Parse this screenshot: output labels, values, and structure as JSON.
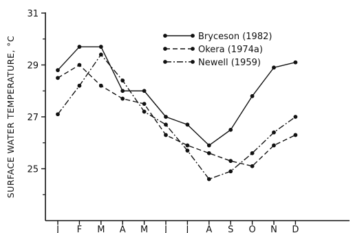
{
  "chart_data": {
    "type": "line",
    "title": "",
    "xlabel": "",
    "ylabel": "SURFACE WATER TEMPERATURE, °C",
    "categories": [
      "J",
      "F",
      "M",
      "A",
      "M",
      "J",
      "J",
      "A",
      "S",
      "O",
      "N",
      "D"
    ],
    "ylim": [
      23,
      31
    ],
    "yticks": [
      25,
      27,
      29,
      31
    ],
    "grid": false,
    "legend_position": "top-center",
    "series": [
      {
        "name": "Bryceson (1982)",
        "line_style": "solid",
        "color": "#111111",
        "values": [
          28.8,
          29.7,
          29.7,
          28.0,
          28.0,
          27.0,
          26.7,
          25.9,
          26.5,
          27.8,
          28.9,
          29.1
        ]
      },
      {
        "name": "Okera (1974a)",
        "line_style": "dashed",
        "color": "#111111",
        "values": [
          28.5,
          29.0,
          28.2,
          27.7,
          27.5,
          26.3,
          25.9,
          25.6,
          25.3,
          25.1,
          25.9,
          26.3
        ]
      },
      {
        "name": "Newell (1959)",
        "line_style": "dash-dot",
        "color": "#111111",
        "values": [
          27.1,
          28.2,
          29.4,
          28.4,
          27.2,
          26.7,
          25.7,
          24.6,
          24.9,
          25.6,
          26.4,
          27.0
        ]
      }
    ]
  }
}
